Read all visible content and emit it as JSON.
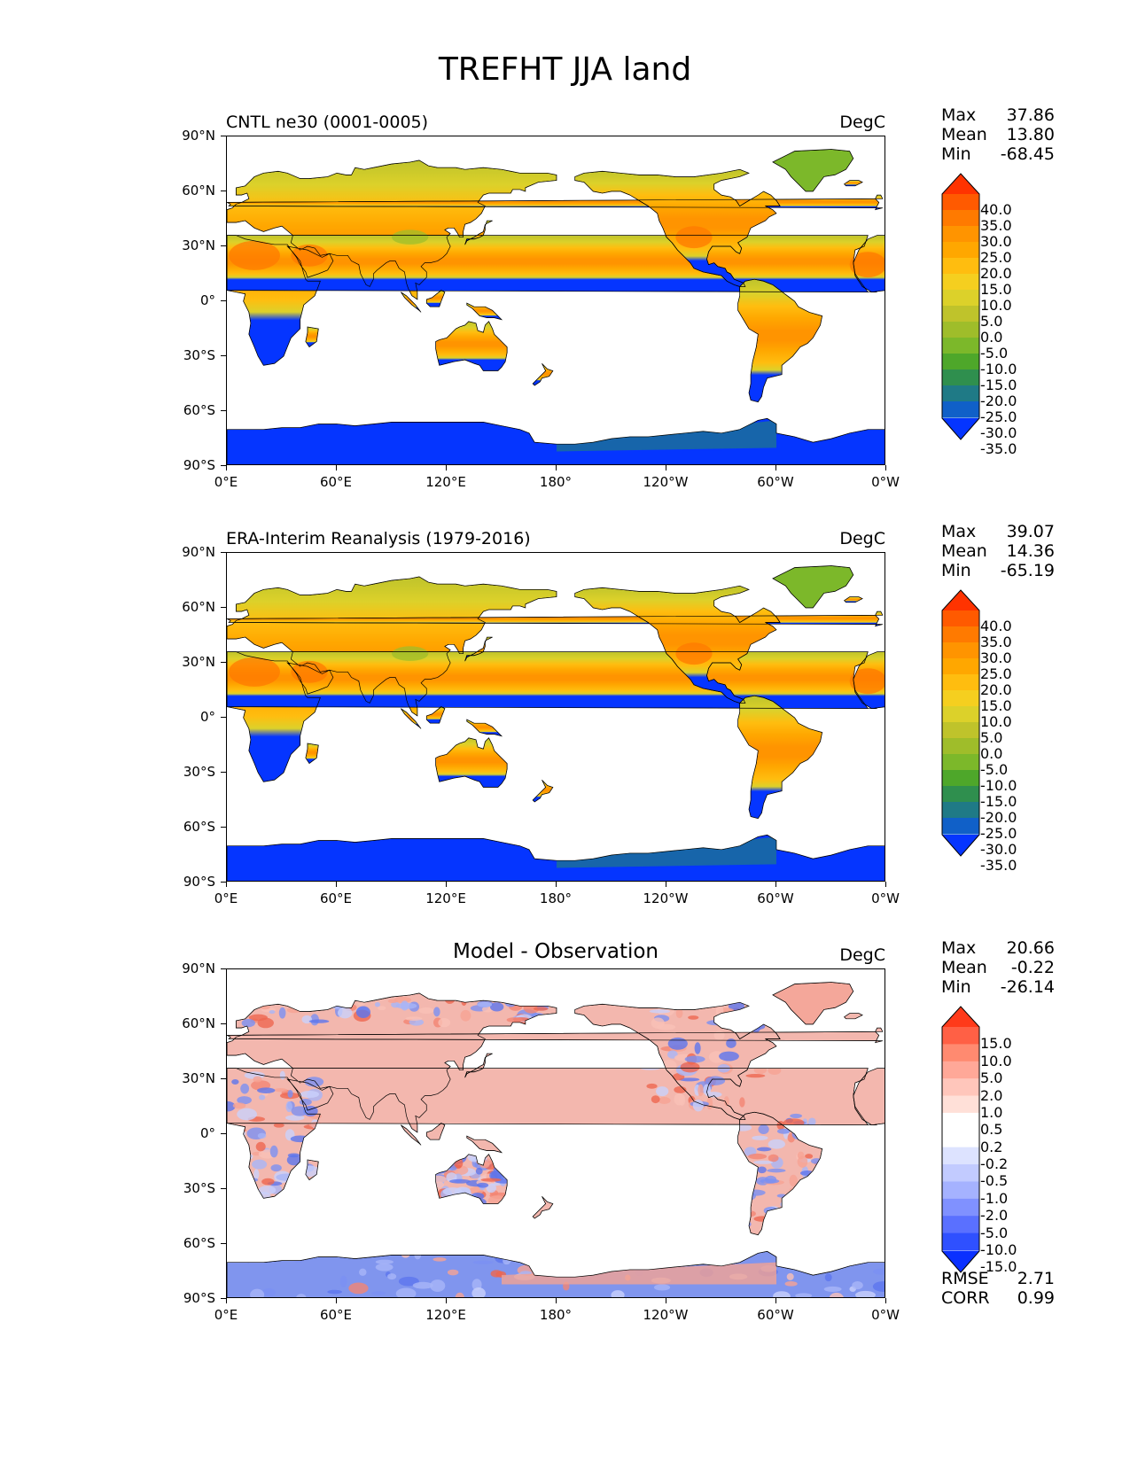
{
  "figure": {
    "title": "TREFHT JJA land"
  },
  "panels": [
    {
      "id": "model",
      "left_label": "CNTL ne30 (0001-0005)",
      "center_label": "",
      "units": "DegC",
      "stats": {
        "max_label": "Max",
        "max": "37.86",
        "mean_label": "Mean",
        "mean": "13.80",
        "min_label": "Min",
        "min": "-68.45"
      },
      "colorbar": {
        "levels": [
          "40.0",
          "35.0",
          "30.0",
          "25.0",
          "20.0",
          "15.0",
          "10.0",
          "5.0",
          "0.0",
          "-5.0",
          "-10.0",
          "-15.0",
          "-20.0",
          "-25.0",
          "-30.0",
          "-35.0"
        ],
        "colors": [
          "#ff3300",
          "#ff5a00",
          "#ff7a00",
          "#ff9400",
          "#ffa700",
          "#ffbd0f",
          "#f5cf1f",
          "#dcd12a",
          "#bfc32b",
          "#9fbd2a",
          "#7cb82a",
          "#4ea72a",
          "#2f8f4e",
          "#1f7a86",
          "#1060c8",
          "#0535ff"
        ]
      },
      "field": "temperature"
    },
    {
      "id": "obs",
      "left_label": "ERA-Interim Reanalysis (1979-2016)",
      "center_label": "",
      "units": "DegC",
      "stats": {
        "max_label": "Max",
        "max": "39.07",
        "mean_label": "Mean",
        "mean": "14.36",
        "min_label": "Min",
        "min": "-65.19"
      },
      "colorbar": {
        "levels": [
          "40.0",
          "35.0",
          "30.0",
          "25.0",
          "20.0",
          "15.0",
          "10.0",
          "5.0",
          "0.0",
          "-5.0",
          "-10.0",
          "-15.0",
          "-20.0",
          "-25.0",
          "-30.0",
          "-35.0"
        ],
        "colors": [
          "#ff3300",
          "#ff5a00",
          "#ff7a00",
          "#ff9400",
          "#ffa700",
          "#ffbd0f",
          "#f5cf1f",
          "#dcd12a",
          "#bfc32b",
          "#9fbd2a",
          "#7cb82a",
          "#4ea72a",
          "#2f8f4e",
          "#1f7a86",
          "#1060c8",
          "#0535ff"
        ]
      },
      "field": "temperature"
    },
    {
      "id": "diff",
      "left_label": "",
      "center_label": "Model - Observation",
      "units": "DegC",
      "stats": {
        "max_label": "Max",
        "max": "20.66",
        "mean_label": "Mean",
        "mean": "-0.22",
        "min_label": "Min",
        "min": "-26.14"
      },
      "colorbar": {
        "levels": [
          "15.0",
          "10.0",
          "5.0",
          "2.0",
          "1.0",
          "0.5",
          "0.2",
          "-0.2",
          "-0.5",
          "-1.0",
          "-2.0",
          "-5.0",
          "-10.0",
          "-15.0"
        ],
        "colors": [
          "#ff3a1a",
          "#ff6045",
          "#ff8a70",
          "#ffa898",
          "#ffc6bb",
          "#ffe0d8",
          "#ffffff",
          "#ffffff",
          "#dde3ff",
          "#c2cbff",
          "#a5b2ff",
          "#8091ff",
          "#5a70ff",
          "#2f50ff",
          "#0a30ff"
        ]
      },
      "extra_stats": {
        "rmse_label": "RMSE",
        "rmse": "2.71",
        "corr_label": "CORR",
        "corr": "0.99"
      },
      "field": "difference"
    }
  ],
  "axes": {
    "yticks": [
      "90°N",
      "60°N",
      "30°N",
      "0°",
      "30°S",
      "60°S",
      "90°S"
    ],
    "xticks": [
      "0°E",
      "60°E",
      "120°E",
      "180°",
      "120°W",
      "60°W",
      "0°W"
    ]
  }
}
